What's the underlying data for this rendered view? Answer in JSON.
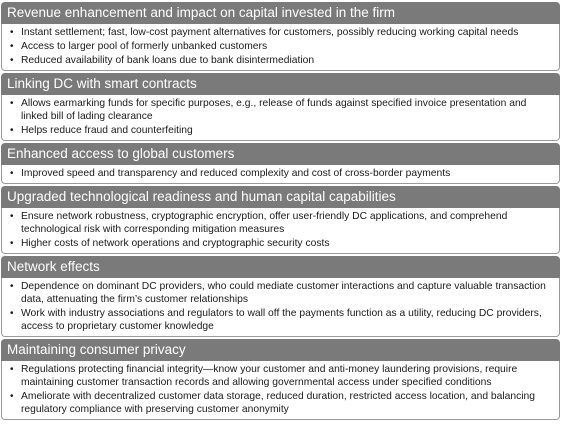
{
  "sections": [
    {
      "title": "Revenue enhancement and impact on capital invested in the firm",
      "bullets": [
        "Instant settlement; fast, low-cost payment alternatives for customers, possibly reducing working capital needs",
        "Access to larger pool of formerly unbanked customers",
        "Reduced availability of bank loans due to bank disintermediation"
      ]
    },
    {
      "title": "Linking DC with smart contracts",
      "bullets": [
        "Allows earmarking funds for specific purposes, e.g., release of funds against specified invoice presentation and linked bill of lading clearance",
        "Helps reduce fraud and counterfeiting"
      ]
    },
    {
      "title": "Enhanced access to global customers",
      "bullets": [
        "Improved speed and transparency and reduced complexity and cost of cross-border payments"
      ]
    },
    {
      "title": "Upgraded technological readiness and human capital capabilities",
      "bullets": [
        "Ensure network robustness, cryptographic encryption, offer user-friendly DC applications, and comprehend technological risk with corresponding mitigation measures",
        "Higher costs of network operations and cryptographic security costs"
      ]
    },
    {
      "title": "Network effects",
      "bullets": [
        "Dependence on dominant DC providers, who could mediate customer interactions and capture valuable transaction data, attenuating the firm’s customer relationships",
        "Work with industry associations and regulators to wall off the payments function as a utility, reducing DC providers, access to proprietary customer knowledge"
      ]
    },
    {
      "title": "Maintaining consumer privacy",
      "bullets": [
        "Regulations protecting financial integrity—know your customer and anti-money laundering provisions, require maintaining customer transaction records and allowing governmental access under specified conditions",
        "Ameliorate with decentralized customer data storage, reduced duration, restricted access location, and balancing regulatory compliance with preserving customer anonymity"
      ]
    }
  ],
  "bullet_symbol": "•"
}
